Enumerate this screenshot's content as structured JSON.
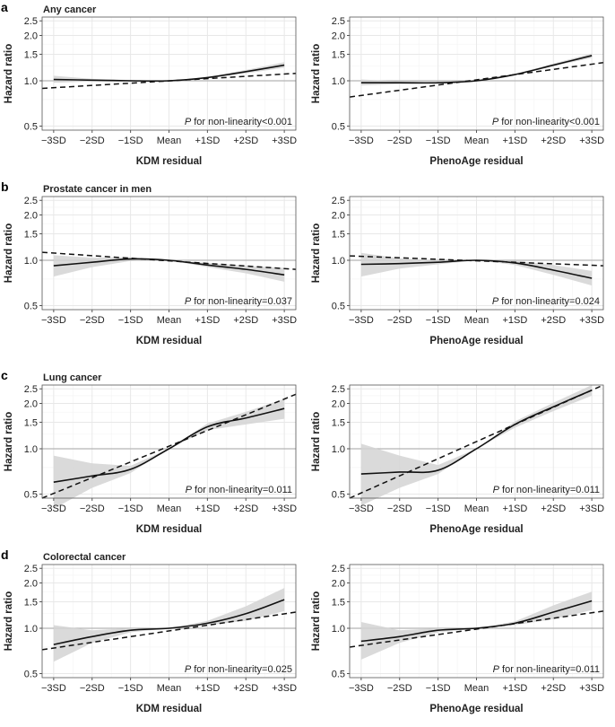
{
  "chart_data": [
    {
      "type": "line",
      "letter": "a",
      "title": "Any cancer",
      "xlabel": "KDM residual",
      "ylabel": "Hazard ratio",
      "annotation_p": "P",
      "annotation": " for non-linearity<0.001",
      "x": [
        -3,
        -2,
        -1,
        0,
        1,
        2,
        3
      ],
      "solid": [
        1.02,
        1.01,
        1.0,
        1.0,
        1.05,
        1.15,
        1.27
      ],
      "ci_low": [
        0.97,
        0.99,
        0.99,
        1.0,
        1.04,
        1.12,
        1.22
      ],
      "ci_high": [
        1.08,
        1.03,
        1.01,
        1.0,
        1.06,
        1.18,
        1.33
      ],
      "dashed": [
        0.89,
        1.12
      ]
    },
    {
      "type": "line",
      "letter": "",
      "title": "",
      "xlabel": "PhenoAge residual",
      "ylabel": "Hazard ratio",
      "annotation_p": "P",
      "annotation": " for non-linearity<0.001",
      "x": [
        -3,
        -2,
        -1,
        0,
        1,
        2,
        3
      ],
      "solid": [
        0.97,
        0.97,
        0.97,
        1.0,
        1.1,
        1.27,
        1.47
      ],
      "ci_low": [
        0.93,
        0.95,
        0.96,
        1.0,
        1.09,
        1.25,
        1.42
      ],
      "ci_high": [
        1.02,
        0.99,
        0.98,
        1.0,
        1.11,
        1.3,
        1.52
      ],
      "dashed": [
        0.78,
        1.32
      ]
    },
    {
      "type": "line",
      "letter": "b",
      "title": "Prostate cancer in men",
      "xlabel": "KDM residual",
      "ylabel": "Hazard ratio",
      "annotation_p": "P",
      "annotation": " for non-linearity=0.037",
      "x": [
        -3,
        -2,
        -1,
        0,
        1,
        2,
        3
      ],
      "solid": [
        0.92,
        0.97,
        1.02,
        1.0,
        0.93,
        0.87,
        0.8
      ],
      "ci_low": [
        0.78,
        0.9,
        0.99,
        1.0,
        0.9,
        0.82,
        0.72
      ],
      "ci_high": [
        1.08,
        1.04,
        1.05,
        1.0,
        0.96,
        0.92,
        0.89
      ],
      "dashed": [
        1.13,
        0.87
      ]
    },
    {
      "type": "line",
      "letter": "",
      "title": "",
      "xlabel": "PhenoAge residual",
      "ylabel": "Hazard ratio",
      "annotation_p": "P",
      "annotation": " for non-linearity=0.024",
      "x": [
        -3,
        -2,
        -1,
        0,
        1,
        2,
        3
      ],
      "solid": [
        0.94,
        0.95,
        0.97,
        1.0,
        0.96,
        0.86,
        0.76
      ],
      "ci_low": [
        0.78,
        0.88,
        0.94,
        1.0,
        0.93,
        0.8,
        0.68
      ],
      "ci_high": [
        1.12,
        1.03,
        1.0,
        1.0,
        0.99,
        0.93,
        0.85
      ],
      "dashed": [
        1.07,
        0.92
      ]
    },
    {
      "type": "line",
      "letter": "c",
      "title": "Lung cancer",
      "xlabel": "KDM residual",
      "ylabel": "Hazard ratio",
      "annotation_p": "P",
      "annotation": " for non-linearity=0.011",
      "x": [
        -3,
        -2,
        -1,
        0,
        1,
        2,
        3
      ],
      "solid": [
        0.6,
        0.66,
        0.73,
        1.0,
        1.4,
        1.6,
        1.85
      ],
      "ci_low": [
        0.4,
        0.55,
        0.69,
        1.0,
        1.33,
        1.45,
        1.58
      ],
      "ci_high": [
        0.9,
        0.8,
        0.77,
        1.0,
        1.47,
        1.76,
        2.15
      ],
      "dashed": [
        0.43,
        2.3
      ]
    },
    {
      "type": "line",
      "letter": "",
      "title": "",
      "xlabel": "PhenoAge residual",
      "ylabel": "Hazard ratio",
      "annotation_p": "P",
      "annotation": " for non-linearity=0.011",
      "x": [
        -3,
        -2,
        -1,
        0,
        1,
        2,
        3
      ],
      "solid": [
        0.68,
        0.7,
        0.72,
        1.0,
        1.45,
        1.9,
        2.45
      ],
      "ci_low": [
        0.42,
        0.55,
        0.68,
        1.0,
        1.38,
        1.78,
        2.25
      ],
      "ci_high": [
        1.08,
        0.9,
        0.78,
        1.0,
        1.52,
        2.02,
        2.65
      ],
      "dashed": [
        0.42,
        2.65
      ]
    },
    {
      "type": "line",
      "letter": "d",
      "title": "Colorectal cancer",
      "xlabel": "KDM residual",
      "ylabel": "Hazard ratio",
      "annotation_p": "P",
      "annotation": " for non-linearity=0.025",
      "x": [
        -3,
        -2,
        -1,
        0,
        1,
        2,
        3
      ],
      "solid": [
        0.78,
        0.88,
        0.97,
        1.0,
        1.08,
        1.25,
        1.55
      ],
      "ci_low": [
        0.6,
        0.8,
        0.94,
        1.0,
        1.05,
        1.12,
        1.3
      ],
      "ci_high": [
        1.05,
        0.97,
        1.0,
        1.0,
        1.12,
        1.4,
        1.85
      ],
      "dashed": [
        0.72,
        1.28
      ]
    },
    {
      "type": "line",
      "letter": "",
      "title": "",
      "xlabel": "PhenoAge residual",
      "ylabel": "Hazard ratio",
      "annotation_p": "P",
      "annotation": " for non-linearity=0.011",
      "x": [
        -3,
        -2,
        -1,
        0,
        1,
        2,
        3
      ],
      "solid": [
        0.82,
        0.88,
        0.97,
        1.0,
        1.08,
        1.28,
        1.52
      ],
      "ci_low": [
        0.62,
        0.8,
        0.94,
        1.0,
        1.05,
        1.15,
        1.32
      ],
      "ci_high": [
        1.1,
        0.97,
        1.0,
        1.0,
        1.11,
        1.42,
        1.75
      ],
      "dashed": [
        0.75,
        1.3
      ]
    }
  ],
  "x_ticks": [
    "−3SD",
    "−2SD",
    "−1SD",
    "Mean",
    "+1SD",
    "+2SD",
    "+3SD"
  ],
  "y_ticks": [
    "0.5",
    "1.0",
    "1.5",
    "2.0",
    "2.5"
  ],
  "y_tick_values": [
    0.5,
    1.0,
    1.5,
    2.0,
    2.5
  ],
  "xlim": [
    -3.3,
    3.3
  ],
  "ylim": [
    0.47,
    2.65
  ],
  "y_scale": "log"
}
